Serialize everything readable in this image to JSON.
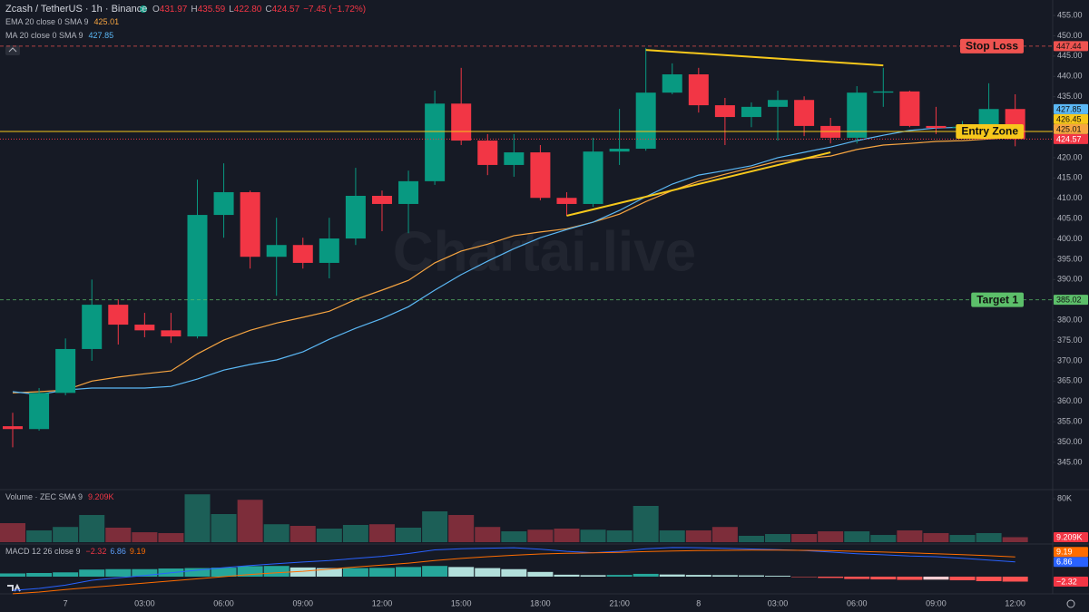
{
  "chart_data": [
    {
      "type": "candlestick",
      "title": "Zcash / TetherUS · 1h · Binance",
      "ohlc_text": [
        "O",
        "431.97",
        "H",
        "435.59",
        "L",
        "422.80",
        "C",
        "424.57",
        "−7.45 (−1.72%)"
      ],
      "watermark": "Chartai.live",
      "categories": [
        null,
        null,
        "7",
        null,
        null,
        "03:00",
        null,
        null,
        "06:00",
        null,
        null,
        "09:00",
        null,
        null,
        "12:00",
        null,
        null,
        "15:00",
        null,
        null,
        "18:00",
        null,
        null,
        "21:00",
        null,
        null,
        "8",
        null,
        null,
        "03:00",
        null,
        null,
        "06:00",
        null,
        null,
        "09:00",
        null,
        null,
        "12:00"
      ],
      "open": [
        353.9,
        353.2,
        362.1,
        372.9,
        383.8,
        378.9,
        377.5,
        376.0,
        405.9,
        411.5,
        395.6,
        398.5,
        394.1,
        400.1,
        410.6,
        408.6,
        414.2,
        433.3,
        424.2,
        418.2,
        421.3,
        410.1,
        408.6,
        421.5,
        422.2,
        436.0,
        440.5,
        432.9,
        430.0,
        432.5,
        434.2,
        427.8,
        424.9,
        436.0,
        436.3,
        427.8,
        427.3,
        427.6,
        431.97
      ],
      "high": [
        357.2,
        363.3,
        375.5,
        390.0,
        385.1,
        381.8,
        381.8,
        414.6,
        418.6,
        411.9,
        405.2,
        400.3,
        405.2,
        417.5,
        411.9,
        416.8,
        436.5,
        442.1,
        425.8,
        425.8,
        423.1,
        411.5,
        424.9,
        432.0,
        447.0,
        443.2,
        442.1,
        434.7,
        433.6,
        436.5,
        435.1,
        429.8,
        437.6,
        442.1,
        436.5,
        432.5,
        429.0,
        438.3,
        435.59
      ],
      "low": [
        348.7,
        352.8,
        361.5,
        370.0,
        374.0,
        375.8,
        374.4,
        375.5,
        400.3,
        392.7,
        386.0,
        392.7,
        390.3,
        398.5,
        401.9,
        401.4,
        413.3,
        423.1,
        415.7,
        415.3,
        409.5,
        405.7,
        407.9,
        418.2,
        421.7,
        435.6,
        431.1,
        423.1,
        427.5,
        424.2,
        425.3,
        423.5,
        423.5,
        432.5,
        427.5,
        425.8,
        426.0,
        426.5,
        422.8
      ],
      "close": [
        353.2,
        362.1,
        372.9,
        383.8,
        378.9,
        377.5,
        376.0,
        405.9,
        411.5,
        395.6,
        398.5,
        394.1,
        400.1,
        410.6,
        408.6,
        414.2,
        433.3,
        424.2,
        418.2,
        421.3,
        410.1,
        408.6,
        421.5,
        422.2,
        436.0,
        440.5,
        432.9,
        430.0,
        432.5,
        434.2,
        427.8,
        424.9,
        436.0,
        436.3,
        427.8,
        427.3,
        427.6,
        431.97,
        424.57
      ],
      "up_color": "#089981",
      "down_color": "#f23645",
      "ylim": [
        338.3,
        458.8
      ],
      "yticks": [
        {
          "value": 455,
          "label": "455.00"
        },
        {
          "value": 450,
          "label": "450.00"
        },
        {
          "value": 445,
          "label": "445.00"
        },
        {
          "value": 440,
          "label": "440.00"
        },
        {
          "value": 435,
          "label": "435.00"
        },
        {
          "value": 420,
          "label": "420.00"
        },
        {
          "value": 415,
          "label": "415.00"
        },
        {
          "value": 410,
          "label": "410.00"
        },
        {
          "value": 405,
          "label": "405.00"
        },
        {
          "value": 400,
          "label": "400.00"
        },
        {
          "value": 395,
          "label": "395.00"
        },
        {
          "value": 390,
          "label": "390.00"
        },
        {
          "value": 380,
          "label": "380.00"
        },
        {
          "value": 375,
          "label": "375.00"
        },
        {
          "value": 370,
          "label": "370.00"
        },
        {
          "value": 365,
          "label": "365.00"
        },
        {
          "value": 360,
          "label": "360.00"
        },
        {
          "value": 355,
          "label": "355.00"
        },
        {
          "value": 350,
          "label": "350.00"
        },
        {
          "value": 345,
          "label": "345.00"
        }
      ],
      "series": [
        {
          "name": "EMA 20 close 0 SMA 9",
          "color": "#f7a541",
          "values": [
            362.1,
            362.4,
            362.8,
            365.0,
            366.0,
            366.8,
            367.5,
            371.7,
            375.1,
            377.5,
            379.3,
            380.7,
            382.2,
            385.1,
            387.4,
            389.8,
            394.1,
            397.0,
            398.7,
            400.8,
            401.7,
            402.5,
            404.1,
            406.1,
            409.2,
            411.9,
            414.2,
            415.9,
            417.5,
            419.1,
            419.7,
            420.4,
            422.0,
            423.1,
            423.5,
            424.0,
            424.2,
            424.6,
            425.01
          ]
        },
        {
          "name": "MA 20 close 0 SMA 9",
          "color": "#5bb8f5",
          "values": [
            362.4,
            361.7,
            362.8,
            363.3,
            363.3,
            363.3,
            363.7,
            365.5,
            367.7,
            369.1,
            370.2,
            372.2,
            375.3,
            378.0,
            380.4,
            383.3,
            387.4,
            391.2,
            394.5,
            397.6,
            400.3,
            402.3,
            404.1,
            407.0,
            410.4,
            413.5,
            415.7,
            416.8,
            418.0,
            420.0,
            421.3,
            422.6,
            424.2,
            425.5,
            426.7,
            427.3,
            427.5,
            427.8,
            427.85
          ]
        }
      ],
      "levels": [
        {
          "name": "Stop Loss",
          "value": 447.44,
          "color": "#ef5350",
          "dashed": true
        },
        {
          "name": "Entry Zone",
          "value": 426.45,
          "color": "#f7c81b",
          "dashed": false
        },
        {
          "name": "Target 1",
          "value": 385.02,
          "color": "#5cbf6a",
          "dashed": true
        }
      ],
      "trendlines": [
        {
          "x": [
            24,
            33
          ],
          "values": [
            446.5,
            442.7
          ],
          "color": "#f7c81b"
        },
        {
          "x": [
            21,
            31
          ],
          "values": [
            405.7,
            421.3
          ],
          "color": "#f7c81b"
        }
      ]
    },
    {
      "type": "bar",
      "title": "Volume · ZEC SMA 9",
      "values": [
        35,
        21.7,
        28,
        50,
        26.7,
        18.3,
        16.7,
        88,
        51.7,
        78,
        33,
        30,
        25,
        31.7,
        33,
        26.7,
        56.7,
        50,
        28,
        20,
        23,
        25,
        23,
        21.7,
        66.7,
        21.7,
        21.7,
        28,
        11.7,
        15,
        15,
        20,
        20,
        13.3,
        21.7,
        16.7,
        13.3,
        16.7,
        9.209
      ],
      "last_value_label": "9.209K",
      "up_color": "#1c5f57",
      "down_color": "#7d2d3a",
      "ylim": [
        0,
        96.7
      ],
      "yticks": [
        {
          "value": 80,
          "label": "80K"
        }
      ]
    },
    {
      "type": "macd",
      "title": "MACD 12 26 close 9",
      "histogram": {
        "values": [
          1.5,
          1.7,
          2.0,
          3.3,
          3.5,
          3.5,
          3.8,
          4.0,
          4.2,
          4.9,
          5.0,
          4.3,
          4.0,
          4.0,
          4.1,
          4.5,
          5.0,
          4.5,
          4.0,
          3.5,
          2.2,
          0.9,
          0.7,
          0.8,
          1.3,
          1.0,
          0.8,
          0.7,
          0.6,
          0.4,
          -0.1,
          -0.6,
          -1.1,
          -1.3,
          -1.5,
          -1.4,
          -1.7,
          -2.1,
          -2.32
        ],
        "last_value_label": "−2.32",
        "colors": [
          "#26a69a",
          "#b2dfdb",
          "#ffcdd2",
          "#ff5252"
        ]
      },
      "series": [
        {
          "color": "#2962ff",
          "values": [
            -6.5,
            -5.5,
            -4.0,
            -1.7,
            -0.5,
            0.5,
            1.8,
            3.0,
            4.2,
            5.2,
            6.0,
            6.8,
            7.5,
            8.5,
            9.5,
            10.8,
            12.5,
            13.0,
            13.3,
            13.5,
            12.8,
            11.8,
            11.2,
            11.8,
            13.0,
            13.6,
            13.5,
            13.2,
            12.9,
            12.6,
            12.2,
            11.5,
            10.7,
            10.2,
            9.6,
            9.3,
            8.6,
            7.7,
            6.86
          ]
        },
        {
          "color": "#ff6d00",
          "values": [
            -8.0,
            -7.2,
            -6.0,
            -5.0,
            -4.0,
            -3.0,
            -2.0,
            -1.0,
            0.0,
            1.0,
            1.8,
            2.5,
            3.5,
            4.5,
            5.4,
            6.3,
            7.5,
            8.5,
            9.3,
            10.0,
            10.6,
            10.9,
            11.1,
            11.3,
            11.7,
            12.0,
            12.2,
            12.3,
            12.4,
            12.4,
            12.3,
            12.1,
            11.8,
            11.5,
            11.1,
            10.7,
            10.3,
            9.8,
            9.19
          ]
        }
      ],
      "ylim": [
        -8.05,
        15.25
      ]
    }
  ]
}
